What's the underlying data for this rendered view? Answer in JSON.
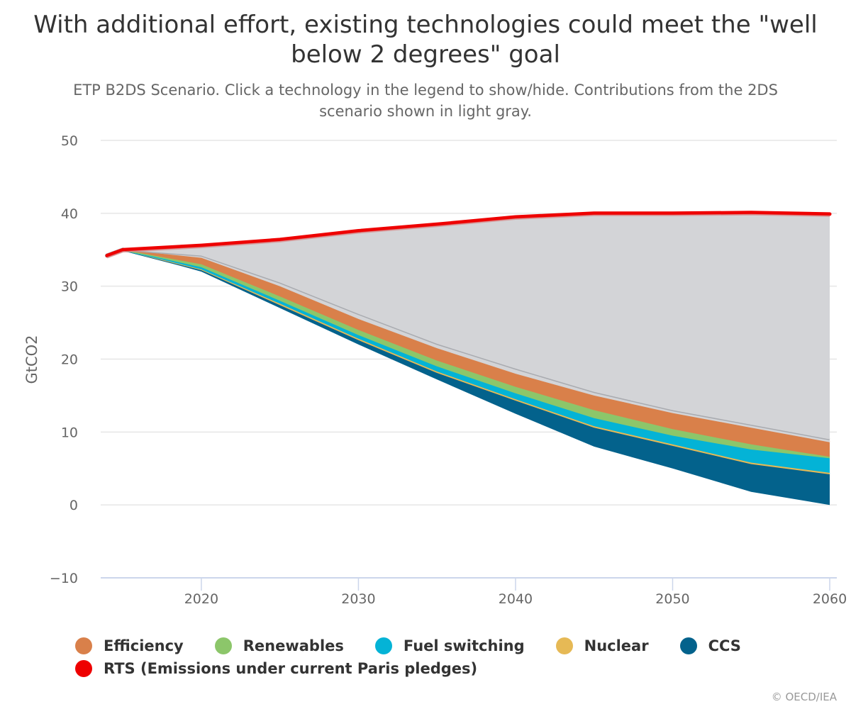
{
  "title": "With additional effort, existing technologies could meet the \"well below 2 degrees\" goal",
  "subtitle": "ETP B2DS Scenario. Click a technology in the legend to show/hide. Contributions from the 2DS scenario shown in light gray.",
  "credits": "© OECD/IEA",
  "legend": [
    {
      "name": "Efficiency",
      "color": "#d9804a"
    },
    {
      "name": "Renewables",
      "color": "#8cc66a"
    },
    {
      "name": "Fuel switching",
      "color": "#04b3d6"
    },
    {
      "name": "Nuclear",
      "color": "#e6b955"
    },
    {
      "name": "CCS",
      "color": "#03628c"
    },
    {
      "name": "RTS (Emissions under current Paris pledges)",
      "color": "#ee0000"
    }
  ],
  "chart_data": {
    "type": "area",
    "stacked": true,
    "title": "With additional effort, existing technologies could meet the \"well below 2 degrees\" goal",
    "subtitle": "ETP B2DS Scenario. Click a technology in the legend to show/hide. Contributions from the 2DS scenario shown in light gray.",
    "xlabel": "",
    "ylabel": "GtCO2",
    "ylim": [
      -10,
      50
    ],
    "xlim": [
      2014,
      2060
    ],
    "y_ticks": [
      -10,
      0,
      10,
      20,
      30,
      40,
      50
    ],
    "x_ticks": [
      2020,
      2030,
      2040,
      2050,
      2060
    ],
    "grid": true,
    "legend_position": "bottom-left",
    "x": [
      2015,
      2020,
      2025,
      2030,
      2035,
      2040,
      2045,
      2050,
      2055,
      2060
    ],
    "base_b2ds_emissions": [
      35.0,
      32.0,
      27.0,
      22.0,
      17.2,
      12.5,
      8.0,
      5.0,
      1.8,
      0.0
    ],
    "series": [
      {
        "name": "CCS",
        "color": "#03628c",
        "values": [
          0.0,
          0.2,
          0.4,
          0.6,
          0.9,
          1.8,
          2.6,
          3.1,
          3.8,
          4.2
        ]
      },
      {
        "name": "Nuclear",
        "color": "#e6b955",
        "values": [
          0.0,
          0.1,
          0.2,
          0.2,
          0.2,
          0.2,
          0.2,
          0.2,
          0.2,
          0.2
        ]
      },
      {
        "name": "Fuel switching",
        "color": "#04b3d6",
        "values": [
          0.0,
          0.3,
          0.4,
          0.5,
          0.7,
          0.8,
          1.1,
          1.2,
          1.8,
          2.0
        ]
      },
      {
        "name": "Renewables",
        "color": "#8cc66a",
        "values": [
          0.0,
          0.4,
          0.6,
          0.7,
          0.8,
          0.9,
          1.1,
          0.9,
          0.7,
          0.2
        ]
      },
      {
        "name": "Efficiency",
        "color": "#d9804a",
        "values": [
          0.0,
          0.9,
          1.4,
          1.5,
          1.7,
          1.8,
          2.0,
          2.2,
          2.3,
          2.0
        ]
      },
      {
        "name": "2DS contributions",
        "color": "#d3d4d7",
        "values": [
          0.0,
          0.3,
          0.5,
          0.7,
          0.6,
          0.7,
          0.5,
          0.4,
          0.4,
          0.4
        ]
      },
      {
        "name": "Remaining gap to RTS",
        "color": "#d3d4d7",
        "values": [
          0.0,
          1.4,
          5.9,
          11.4,
          16.4,
          20.8,
          24.5,
          27.0,
          29.1,
          30.9
        ]
      }
    ],
    "rts": {
      "name": "RTS (Emissions under current Paris pledges)",
      "color": "#ee0000",
      "x": [
        2014,
        2015,
        2020,
        2025,
        2030,
        2035,
        2040,
        2045,
        2050,
        2055,
        2060
      ],
      "values": [
        34.2,
        35.0,
        35.6,
        36.4,
        37.6,
        38.5,
        39.5,
        40.0,
        40.0,
        40.1,
        39.9
      ]
    }
  }
}
